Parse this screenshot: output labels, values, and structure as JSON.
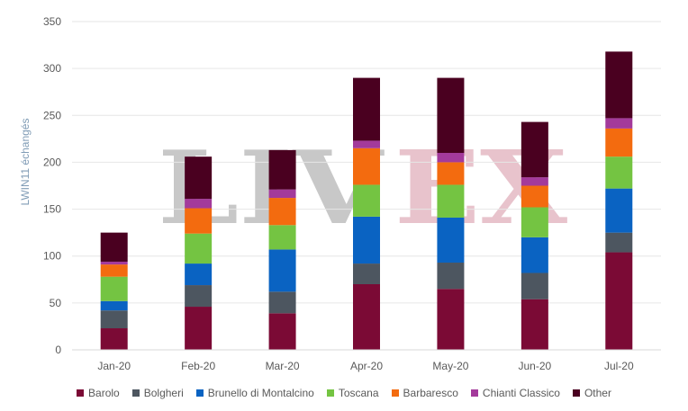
{
  "watermark": {
    "left": "LIV",
    "right": "EX",
    "left_color": "#c8c8c8",
    "right_color": "#e8c3cc"
  },
  "chart_data": {
    "type": "bar",
    "stacked": true,
    "categories": [
      "Jan-20",
      "Feb-20",
      "Mar-20",
      "Apr-20",
      "May-20",
      "Jun-20",
      "Jul-20"
    ],
    "ylabel": "LWIN11 échangés",
    "ylim": [
      0,
      350
    ],
    "yticks": [
      0,
      50,
      100,
      150,
      200,
      250,
      300,
      350
    ],
    "grid": true,
    "legend_position": "bottom",
    "series": [
      {
        "name": "Barolo",
        "color": "#7b0a35",
        "values": [
          23,
          46,
          39,
          70,
          65,
          54,
          104
        ]
      },
      {
        "name": "Bolgheri",
        "color": "#4d5660",
        "values": [
          19,
          23,
          23,
          22,
          28,
          28,
          21
        ]
      },
      {
        "name": "Brunello di Montalcino",
        "color": "#0a63c2",
        "values": [
          10,
          23,
          45,
          50,
          48,
          38,
          47
        ]
      },
      {
        "name": "Toscana",
        "color": "#74c442",
        "values": [
          26,
          32,
          26,
          34,
          35,
          32,
          34
        ]
      },
      {
        "name": "Barbaresco",
        "color": "#f36b0f",
        "values": [
          13,
          27,
          29,
          39,
          24,
          23,
          30
        ]
      },
      {
        "name": "Chianti Classico",
        "color": "#a33a9b",
        "values": [
          3,
          10,
          9,
          8,
          10,
          9,
          11
        ]
      },
      {
        "name": "Other",
        "color": "#4a0020",
        "values": [
          31,
          45,
          42,
          67,
          80,
          59,
          71
        ]
      }
    ]
  }
}
